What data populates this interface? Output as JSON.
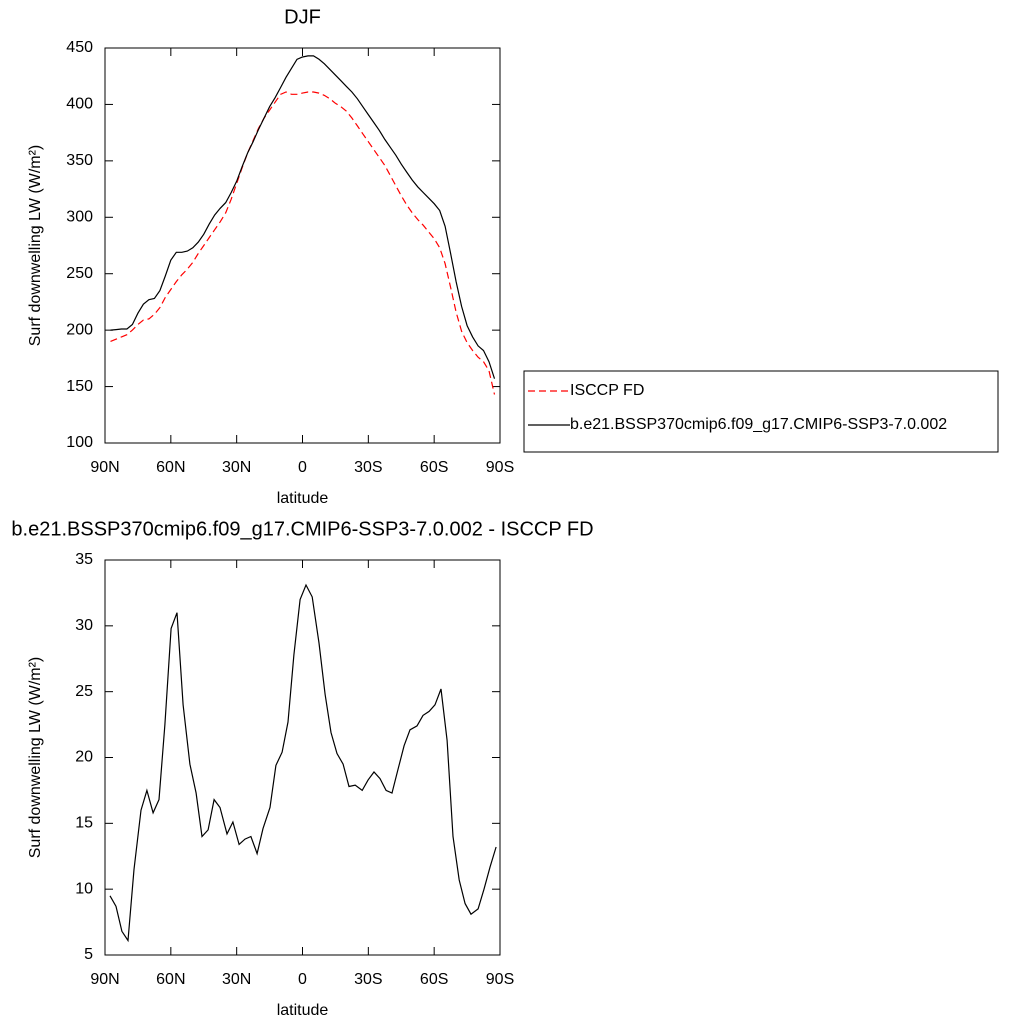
{
  "chart_data": [
    {
      "type": "line",
      "title": "DJF",
      "xlabel": "latitude",
      "ylabel": "Surf downwelling LW (W/m²)",
      "x": [
        87.5,
        85,
        82.5,
        80,
        77.5,
        75,
        72.5,
        70,
        67.5,
        65,
        62.5,
        60,
        57.5,
        55,
        52.5,
        50,
        47.5,
        45,
        42.5,
        40,
        37.5,
        35,
        32.5,
        30,
        27.5,
        25,
        22.5,
        20,
        17.5,
        15,
        12.5,
        10,
        7.5,
        5,
        2.5,
        0,
        -2.5,
        -5,
        -7.5,
        -10,
        -12.5,
        -15,
        -17.5,
        -20,
        -22.5,
        -25,
        -27.5,
        -30,
        -32.5,
        -35,
        -37.5,
        -40,
        -42.5,
        -45,
        -47.5,
        -50,
        -52.5,
        -55,
        -57.5,
        -60,
        -62.5,
        -65,
        -67.5,
        -70,
        -72.5,
        -75,
        -77.5,
        -80,
        -82.5,
        -85,
        -87.5
      ],
      "series": [
        {
          "name": "ISCCP FD",
          "color": "#ff0000",
          "linestyle": "dashed",
          "values": [
            190,
            192,
            194,
            196,
            200,
            205,
            209,
            210,
            214,
            220,
            229,
            236,
            243,
            249,
            254,
            260,
            268,
            275,
            282,
            289,
            296,
            304,
            316,
            330,
            344,
            357,
            368,
            379,
            388,
            395,
            402,
            409,
            411,
            409,
            409,
            410,
            411,
            411,
            410,
            408,
            405,
            401,
            398,
            394,
            388,
            381,
            374,
            367,
            360,
            353,
            346,
            337,
            328,
            319,
            311,
            304,
            298,
            293,
            287,
            281,
            273,
            259,
            238,
            216,
            199,
            189,
            182,
            176,
            172,
            164,
            143
          ]
        },
        {
          "name": "b.e21.BSSP370cmip6.f09_g17.CMIP6-SSP3-7.0.002",
          "color": "#000000",
          "linestyle": "solid",
          "values": [
            200,
            200.5,
            201,
            201,
            205,
            215,
            223,
            227,
            228,
            235,
            248,
            262,
            269,
            269,
            270,
            273,
            278,
            285,
            294,
            302,
            308,
            313,
            322,
            332,
            345,
            357,
            367,
            378,
            388,
            398,
            406,
            415,
            424,
            432,
            440,
            442,
            443,
            443,
            440,
            436,
            431,
            426,
            421,
            416,
            411,
            405,
            398,
            391,
            384,
            377,
            369,
            362,
            355,
            347,
            340,
            333,
            327,
            322,
            317,
            312,
            306,
            292,
            268,
            243,
            221,
            204,
            194,
            186,
            182,
            172,
            157
          ]
        }
      ],
      "xlim": [
        90,
        -90
      ],
      "xticks": [
        {
          "value": 90,
          "label": "90N"
        },
        {
          "value": 60,
          "label": "60N"
        },
        {
          "value": 30,
          "label": "30N"
        },
        0,
        {
          "value": -30,
          "label": "30S"
        },
        {
          "value": -60,
          "label": "60S"
        },
        {
          "value": -90,
          "label": "90S"
        }
      ],
      "ylim": [
        100,
        450
      ],
      "yticks": [
        100,
        150,
        200,
        250,
        300,
        350,
        400,
        450
      ],
      "legend": "right"
    },
    {
      "type": "line",
      "title": "b.e21.BSSP370cmip6.f09_g17.CMIP6-SSP3-7.0.002 - ISCCP FD",
      "xlabel": "latitude",
      "ylabel": "Surf downwelling LW (W/m²)",
      "x": [
        87.7,
        85,
        82.3,
        79.5,
        76.8,
        73.6,
        70.9,
        68.1,
        65.4,
        62.7,
        59.9,
        57.2,
        54.4,
        51.3,
        48.5,
        45.8,
        43,
        40.3,
        37.6,
        34.4,
        31.7,
        28.9,
        26.2,
        23.5,
        20.7,
        18,
        14.8,
        12.1,
        9.3,
        6.6,
        3.9,
        1.1,
        -1.6,
        -4.4,
        -7.5,
        -10.3,
        -13,
        -15.7,
        -18.5,
        -21.2,
        -24,
        -27.2,
        -29.9,
        -32.6,
        -35.3,
        -38.1,
        -40.8,
        -43.5,
        -46.3,
        -49,
        -52.2,
        -54.9,
        -57.7,
        -60.4,
        -63.1,
        -65.9,
        -68.6,
        -71.4,
        -74.1,
        -76.8,
        -80,
        -82.7,
        -85.5,
        -88.2
      ],
      "series": [
        {
          "color": "#000000",
          "linestyle": "solid",
          "values": [
            9.5,
            8.7,
            6.8,
            6.1,
            11.5,
            16,
            17.5,
            15.8,
            16.8,
            22.5,
            29.8,
            31,
            24,
            19.5,
            17.3,
            14,
            14.5,
            16.8,
            16.2,
            14.2,
            15.1,
            13.4,
            13.8,
            14,
            12.7,
            14.6,
            16.2,
            19.4,
            20.4,
            22.7,
            27.8,
            32,
            33.1,
            32.2,
            28.7,
            24.8,
            21.9,
            20.3,
            19.5,
            17.8,
            17.9,
            17.5,
            18.3,
            18.9,
            18.4,
            17.5,
            17.3,
            19.1,
            20.9,
            22.1,
            22.4,
            23.2,
            23.5,
            24,
            25.2,
            21.3,
            14,
            10.7,
            8.9,
            8.1,
            8.5,
            10,
            11.7,
            13.2
          ]
        }
      ],
      "xlim": [
        90,
        -90
      ],
      "xticks": [
        {
          "value": 90,
          "label": "90N"
        },
        {
          "value": 60,
          "label": "60N"
        },
        {
          "value": 30,
          "label": "30N"
        },
        0,
        {
          "value": -30,
          "label": "30S"
        },
        {
          "value": -60,
          "label": "60S"
        },
        {
          "value": -90,
          "label": "90S"
        }
      ],
      "ylim": [
        5,
        35
      ],
      "yticks": [
        5,
        10,
        15,
        20,
        25,
        30,
        35
      ]
    }
  ]
}
